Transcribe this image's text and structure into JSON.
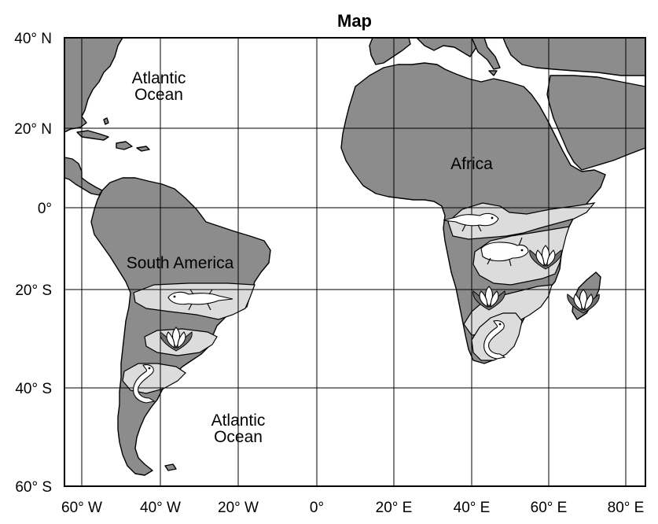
{
  "title": "Map",
  "latitude_labels": [
    "40° N",
    "20° N",
    "0°",
    "20° S",
    "40° S",
    "60° S"
  ],
  "longitude_labels": [
    "60° W",
    "40° W",
    "20° W",
    "0°",
    "20° E",
    "40° E",
    "60° E",
    "80° E"
  ],
  "regions": {
    "atlantic_north": [
      "Atlantic",
      "Ocean"
    ],
    "atlantic_south": [
      "Atlantic",
      "Ocean"
    ],
    "africa": "Africa",
    "south_america": "South America"
  },
  "colors": {
    "land": "#8c8c8c",
    "fossil_zone": "#dcdcdc",
    "water": "#ffffff"
  },
  "fossil_icons": [
    "lizard-fossil-icon",
    "reptile-fossil-icon",
    "fern-fossil-icon",
    "aquatic-reptile-fossil-icon"
  ]
}
